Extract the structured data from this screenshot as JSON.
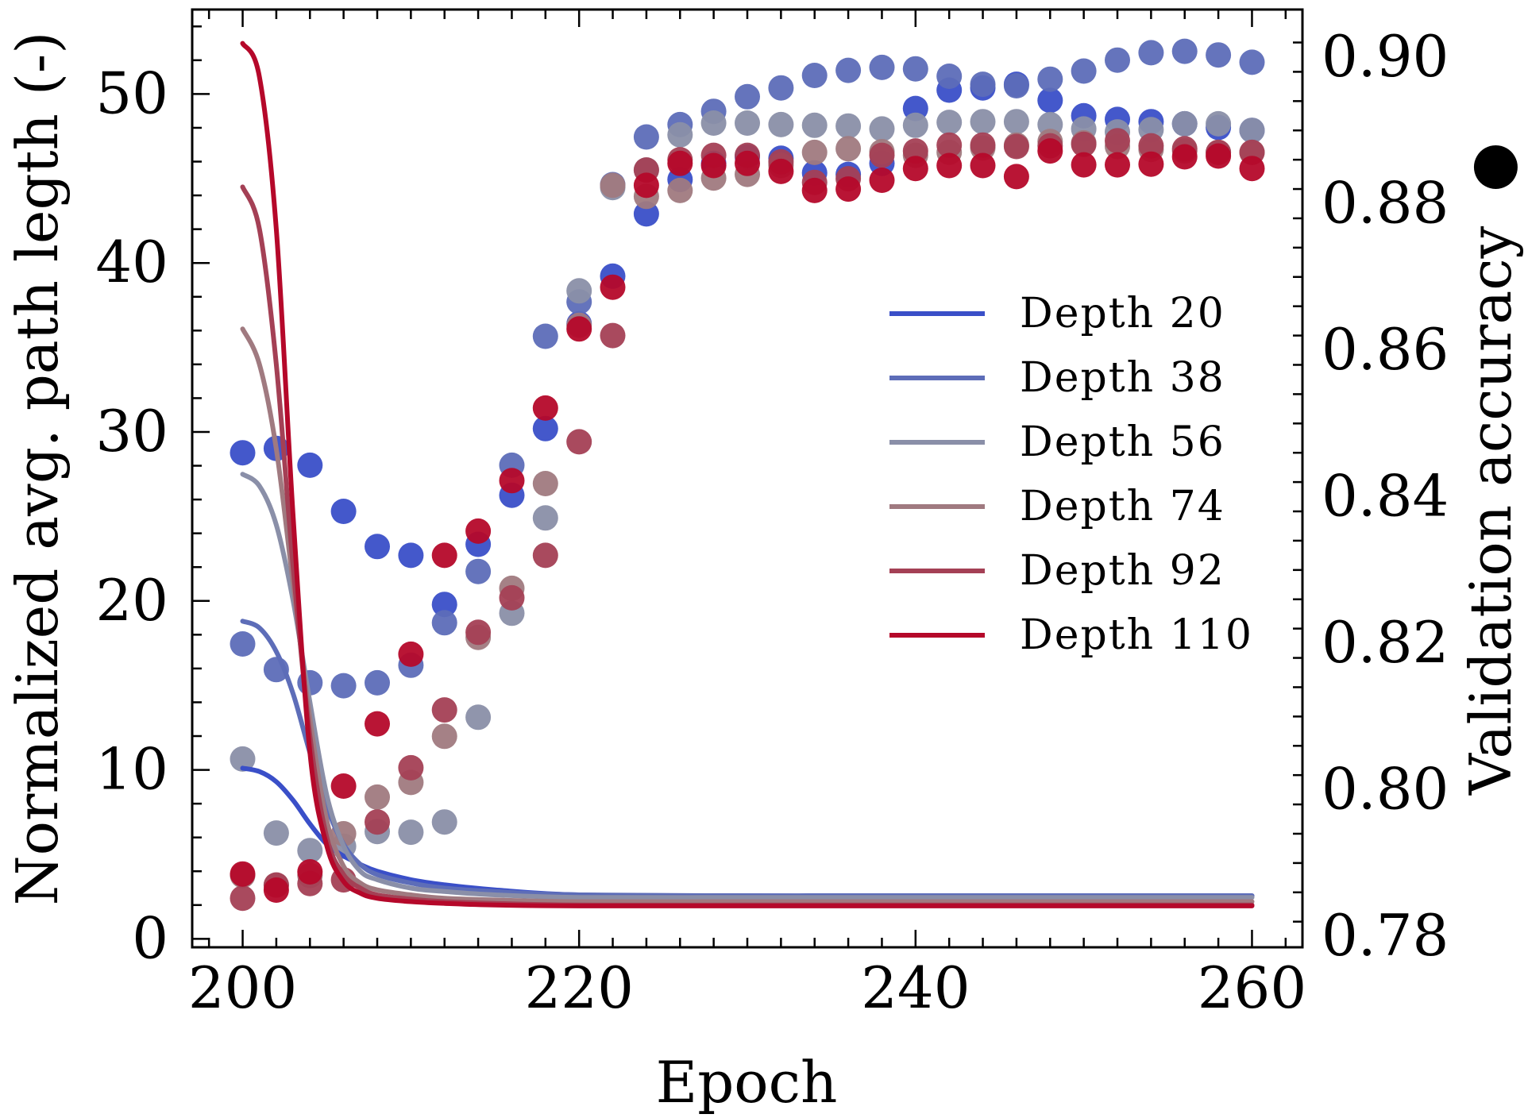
{
  "chart_data": {
    "type": "line+scatter",
    "xlabel": "Epoch",
    "ylabel_left": "Normalized avg. path legth (-)",
    "ylabel_right": "Validation accuracy",
    "ylabel_right_marker": "●",
    "xlim": [
      197,
      263
    ],
    "ylim_left": [
      -0.5,
      55
    ],
    "ylim_right": [
      0.7785,
      0.9065
    ],
    "xticks": [
      200,
      220,
      240,
      260
    ],
    "xtick_labels": [
      "200",
      "220",
      "240",
      "260"
    ],
    "yticks_left": [
      0,
      10,
      20,
      30,
      40,
      50
    ],
    "ytick_labels_left": [
      "0",
      "10",
      "20",
      "30",
      "40",
      "50"
    ],
    "yticks_right": [
      0.78,
      0.8,
      0.82,
      0.84,
      0.86,
      0.88,
      0.9
    ],
    "ytick_labels_right": [
      "0.78",
      "0.80",
      "0.82",
      "0.84",
      "0.86",
      "0.88",
      "0.90"
    ],
    "legend_position": "center-right",
    "line_x": [
      200,
      201,
      202,
      203,
      204,
      205,
      206,
      207,
      208,
      210,
      212,
      215,
      220,
      230,
      240,
      250,
      260
    ],
    "scatter_x": [
      200,
      202,
      204,
      206,
      208,
      210,
      212,
      214,
      216,
      218,
      220,
      222,
      224,
      226,
      228,
      230,
      232,
      234,
      236,
      238,
      240,
      242,
      244,
      246,
      248,
      250,
      252,
      254,
      256,
      258,
      260
    ],
    "series": [
      {
        "name": "Depth 20",
        "color": "#3a4fc8",
        "path_length": [
          10.1,
          9.9,
          9.3,
          8.2,
          6.8,
          5.6,
          4.9,
          4.4,
          4.0,
          3.5,
          3.2,
          2.9,
          2.6,
          2.55,
          2.55,
          2.55,
          2.55
        ],
        "accuracy": [
          0.846,
          0.8466,
          0.8443,
          0.838,
          0.8332,
          0.832,
          0.8253,
          0.8335,
          0.8402,
          0.8493,
          0.8636,
          0.8701,
          0.8786,
          0.8833,
          0.8855,
          0.8864,
          0.8862,
          0.8842,
          0.884,
          0.8855,
          0.893,
          0.8955,
          0.8958,
          0.8963,
          0.8941,
          0.892,
          0.8915,
          0.8912,
          0.8909,
          0.8904,
          0.89
        ]
      },
      {
        "name": "Depth 38",
        "color": "#5d6db8",
        "path_length": [
          18.8,
          18.4,
          17.0,
          14.5,
          11.0,
          7.8,
          5.6,
          4.4,
          3.8,
          3.3,
          3.0,
          2.8,
          2.6,
          2.55,
          2.55,
          2.55,
          2.55
        ],
        "accuracy": [
          0.8199,
          0.8164,
          0.8146,
          0.8142,
          0.8146,
          0.817,
          0.8228,
          0.8298,
          0.8443,
          0.8619,
          0.8666,
          0.8826,
          0.8891,
          0.8908,
          0.8926,
          0.8946,
          0.8958,
          0.8975,
          0.8982,
          0.8986,
          0.8984,
          0.8974,
          0.8963,
          0.8961,
          0.897,
          0.8981,
          0.8996,
          0.9006,
          0.9008,
          0.9003,
          0.8993
        ]
      },
      {
        "name": "Depth 56",
        "color": "#8a8fa8",
        "path_length": [
          27.5,
          26.8,
          24.5,
          20.0,
          14.0,
          8.5,
          5.5,
          4.0,
          3.5,
          3.0,
          2.8,
          2.6,
          2.45,
          2.45,
          2.45,
          2.45,
          2.45
        ],
        "accuracy": [
          0.8042,
          0.7941,
          0.7917,
          0.7923,
          0.7943,
          0.7942,
          0.7956,
          0.8099,
          0.8241,
          0.8371,
          0.8681,
          0.8822,
          0.8846,
          0.8894,
          0.891,
          0.891,
          0.8908,
          0.8907,
          0.8906,
          0.8902,
          0.8907,
          0.8911,
          0.8912,
          0.8912,
          0.8908,
          0.8902,
          0.8898,
          0.8901,
          0.8909,
          0.8909,
          0.89
        ]
      },
      {
        "name": "Depth 74",
        "color": "#a07a80",
        "path_length": [
          36.1,
          34.0,
          29.0,
          21.0,
          13.0,
          7.0,
          4.3,
          3.3,
          2.9,
          2.6,
          2.4,
          2.3,
          2.2,
          2.2,
          2.2,
          2.2,
          2.2
        ],
        "accuracy": [
          0.7883,
          0.787,
          0.7883,
          0.794,
          0.799,
          0.801,
          0.8073,
          0.8208,
          0.8275,
          0.8418,
          0.8634,
          0.8825,
          0.881,
          0.8818,
          0.8835,
          0.884,
          0.8852,
          0.887,
          0.8875,
          0.8871,
          0.8866,
          0.887,
          0.8876,
          0.888,
          0.8885,
          0.8883,
          0.8878,
          0.8874,
          0.8872,
          0.887,
          0.887
        ]
      },
      {
        "name": "Depth 92",
        "color": "#a44055",
        "path_length": [
          44.5,
          42.0,
          34.0,
          22.0,
          12.0,
          6.0,
          3.8,
          3.0,
          2.6,
          2.35,
          2.2,
          2.1,
          2.0,
          2.0,
          2.0,
          2.0,
          2.0
        ],
        "accuracy": [
          0.7852,
          0.787,
          0.7872,
          0.7877,
          0.7956,
          0.803,
          0.8109,
          0.8215,
          0.8262,
          0.832,
          0.8475,
          0.862,
          0.8846,
          0.886,
          0.8866,
          0.8866,
          0.8857,
          0.8829,
          0.8834,
          0.8866,
          0.8872,
          0.888,
          0.888,
          0.8878,
          0.8879,
          0.8881,
          0.8886,
          0.8879,
          0.8875,
          0.887,
          0.887
        ]
      },
      {
        "name": "Depth 110",
        "color": "#b5082a",
        "path_length": [
          53.0,
          51.0,
          42.0,
          25.0,
          11.0,
          5.5,
          3.4,
          2.7,
          2.4,
          2.2,
          2.1,
          2.0,
          1.95,
          1.95,
          1.95,
          1.95,
          1.95
        ],
        "accuracy": [
          0.7885,
          0.7863,
          0.7888,
          0.8005,
          0.809,
          0.8185,
          0.832,
          0.8353,
          0.8422,
          0.8521,
          0.8629,
          0.8686,
          0.8825,
          0.8855,
          0.8852,
          0.8855,
          0.8844,
          0.8818,
          0.882,
          0.8832,
          0.8848,
          0.8852,
          0.8852,
          0.8837,
          0.8872,
          0.8853,
          0.8853,
          0.8854,
          0.8864,
          0.8865,
          0.8848
        ]
      }
    ]
  }
}
